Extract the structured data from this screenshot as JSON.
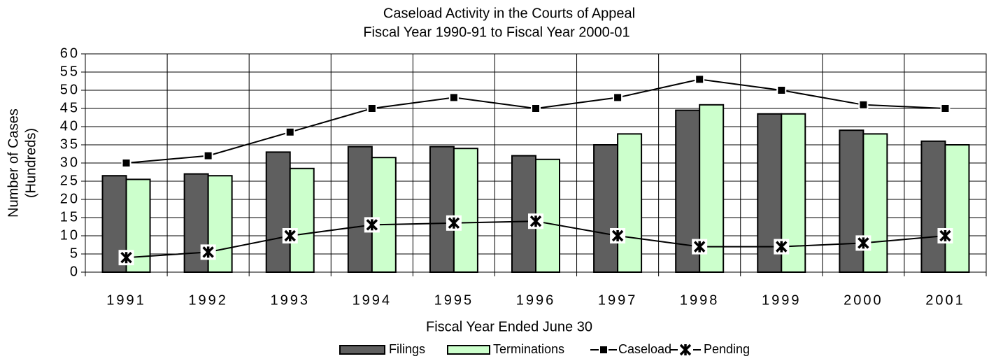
{
  "chart_data": {
    "type": "bar",
    "title": "Caseload Activity in the Courts of Appeal",
    "subtitle": "Fiscal Year 1990-91 to Fiscal Year 2000-01",
    "xlabel": "Fiscal Year Ended June 30",
    "ylabel": [
      "Number of Cases",
      "(Hundreds)"
    ],
    "categories": [
      "1991",
      "1992",
      "1993",
      "1994",
      "1995",
      "1996",
      "1997",
      "1998",
      "1999",
      "2000",
      "2001"
    ],
    "series": [
      {
        "name": "Filings",
        "type": "bar",
        "color": "#5f5f5f",
        "values": [
          26.5,
          27,
          33,
          34.5,
          34.5,
          32,
          35,
          44.5,
          43.5,
          39,
          36
        ]
      },
      {
        "name": "Terminations",
        "type": "bar",
        "color": "#ccffcc",
        "values": [
          25.5,
          26.5,
          28.5,
          31.5,
          34,
          31,
          38,
          46,
          43.5,
          38,
          35
        ]
      },
      {
        "name": "Caseload",
        "type": "line",
        "marker": "square",
        "color": "#000000",
        "values": [
          30,
          32,
          38.5,
          45,
          48,
          45,
          48,
          53,
          50,
          46,
          45
        ]
      },
      {
        "name": "Pending",
        "type": "line",
        "marker": "asterisk",
        "color": "#000000",
        "values": [
          4,
          5.5,
          10,
          13,
          13.5,
          14,
          10,
          7,
          7,
          8,
          10
        ]
      }
    ],
    "ylim": [
      0,
      60
    ],
    "yticks": [
      0,
      5,
      10,
      15,
      20,
      25,
      30,
      35,
      40,
      45,
      50,
      55,
      60
    ],
    "grid": true,
    "legend": "bottom"
  }
}
